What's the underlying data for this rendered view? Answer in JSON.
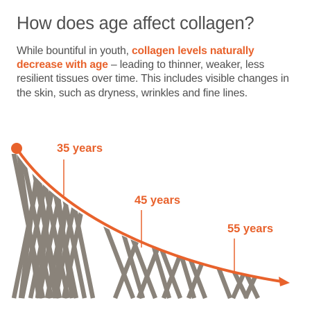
{
  "title": "How does age affect collagen?",
  "intro": {
    "lead": "While bountiful in youth,",
    "highlight": "collagen levels naturally decrease with age",
    "rest": "– leading to thinner, weaker, less resilient tissues over time. This includes visible changes in the skin, such as dryness, wrinkles and fine lines."
  },
  "labels": {
    "age_35": "35 years",
    "age_45": "45 years",
    "age_55": "55 years"
  },
  "colors": {
    "accent": "#e8622c",
    "fiber": "#8a837a",
    "text": "#4f4f4f"
  },
  "icons": {
    "curve": "declining-curve-arrow",
    "fibers": "collagen-fibers-illustration"
  }
}
